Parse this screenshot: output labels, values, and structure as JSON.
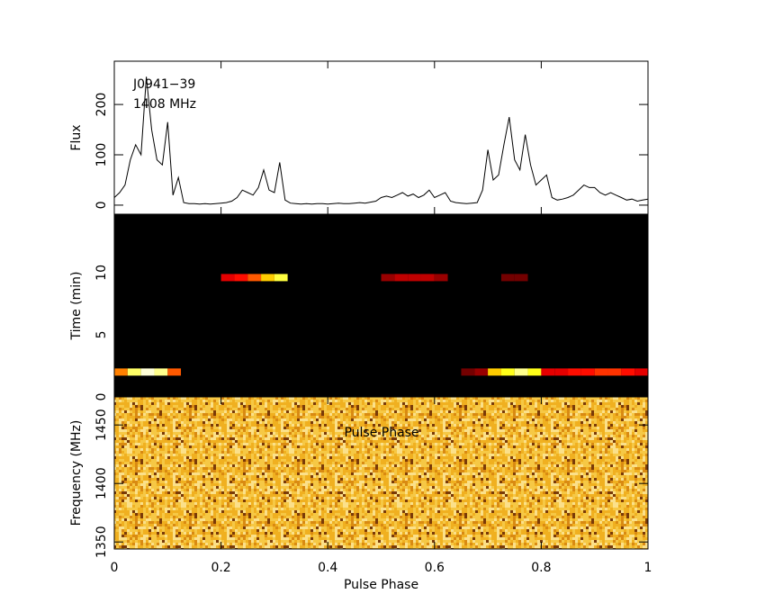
{
  "chart_data": [
    {
      "type": "line",
      "ylabel": "Flux",
      "annotations": [
        "J0941−39",
        "1408 MHz"
      ],
      "x": [
        0,
        0.01,
        0.02,
        0.03,
        0.04,
        0.05,
        0.06,
        0.07,
        0.08,
        0.09,
        0.1,
        0.11,
        0.12,
        0.13,
        0.14,
        0.15,
        0.16,
        0.17,
        0.18,
        0.19,
        0.2,
        0.21,
        0.22,
        0.23,
        0.24,
        0.25,
        0.26,
        0.27,
        0.28,
        0.29,
        0.3,
        0.31,
        0.32,
        0.33,
        0.34,
        0.35,
        0.36,
        0.37,
        0.38,
        0.39,
        0.4,
        0.41,
        0.42,
        0.43,
        0.44,
        0.45,
        0.46,
        0.47,
        0.48,
        0.49,
        0.5,
        0.51,
        0.52,
        0.53,
        0.54,
        0.55,
        0.56,
        0.57,
        0.58,
        0.59,
        0.6,
        0.61,
        0.62,
        0.63,
        0.64,
        0.65,
        0.66,
        0.67,
        0.68,
        0.69,
        0.7,
        0.71,
        0.72,
        0.73,
        0.74,
        0.75,
        0.76,
        0.77,
        0.78,
        0.79,
        0.8,
        0.81,
        0.82,
        0.83,
        0.84,
        0.85,
        0.86,
        0.87,
        0.88,
        0.89,
        0.9,
        0.91,
        0.92,
        0.93,
        0.94,
        0.95,
        0.96,
        0.97,
        0.98,
        0.99,
        1
      ],
      "values": [
        15,
        25,
        40,
        90,
        120,
        100,
        255,
        150,
        90,
        80,
        165,
        20,
        55,
        5,
        3,
        3,
        2,
        3,
        2,
        3,
        4,
        5,
        8,
        15,
        30,
        25,
        20,
        35,
        70,
        30,
        25,
        85,
        10,
        4,
        3,
        2,
        3,
        2,
        3,
        3,
        2,
        3,
        4,
        3,
        3,
        4,
        5,
        4,
        6,
        8,
        15,
        18,
        15,
        20,
        25,
        18,
        22,
        15,
        20,
        30,
        15,
        20,
        25,
        8,
        5,
        4,
        3,
        4,
        5,
        30,
        110,
        50,
        60,
        120,
        175,
        90,
        70,
        140,
        80,
        40,
        50,
        60,
        15,
        10,
        12,
        15,
        20,
        30,
        40,
        35,
        35,
        25,
        20,
        25,
        20,
        15,
        10,
        12,
        8,
        10,
        12
      ],
      "color": "#000000",
      "xlim": [
        0,
        1
      ],
      "xticks": [
        0,
        0.2,
        0.4,
        0.6,
        0.8,
        1
      ],
      "ylim": [
        -18,
        286
      ],
      "yticks": [
        0,
        100,
        200
      ]
    },
    {
      "type": "heatmap",
      "ylabel": "Time (min)",
      "x": [
        0,
        0.025,
        0.05,
        0.075,
        0.1,
        0.125,
        0.15,
        0.175,
        0.2,
        0.225,
        0.25,
        0.275,
        0.3,
        0.325,
        0.35,
        0.375,
        0.4,
        0.425,
        0.45,
        0.475,
        0.5,
        0.525,
        0.55,
        0.575,
        0.6,
        0.625,
        0.65,
        0.675,
        0.7,
        0.725,
        0.75,
        0.775,
        0.8,
        0.825,
        0.85,
        0.875,
        0.9,
        0.925,
        0.95,
        0.975,
        1
      ],
      "rows": [
        {
          "y": 2.0,
          "values": [
            0.5,
            0.8,
            0.95,
            0.85,
            0.45,
            0,
            0,
            0,
            0,
            0,
            0,
            0,
            0,
            0,
            0,
            0,
            0,
            0,
            0,
            0,
            0,
            0,
            0,
            0,
            0,
            0,
            0.15,
            0.2,
            0.6,
            0.7,
            0.85,
            0.7,
            0.3,
            0.3,
            0.35,
            0.35,
            0.4,
            0.4,
            0.35,
            0.3
          ]
        },
        {
          "y": 9.6,
          "values": [
            0,
            0,
            0,
            0,
            0,
            0,
            0,
            0,
            0.3,
            0.35,
            0.45,
            0.6,
            0.75,
            0,
            0,
            0,
            0,
            0,
            0,
            0,
            0.2,
            0.25,
            0.25,
            0.25,
            0.2,
            0,
            0,
            0,
            0,
            0.15,
            0.15,
            0,
            0,
            0,
            0,
            0,
            0,
            0,
            0,
            0
          ]
        }
      ],
      "xlim": [
        0,
        1
      ],
      "xticks": [
        0,
        0.2,
        0.4,
        0.6,
        0.8,
        1
      ],
      "ylim": [
        0,
        14.7
      ],
      "yticks": [
        0,
        5,
        10
      ]
    },
    {
      "type": "image",
      "ylabel": "Frequency (MHz)",
      "xlabel": "Pulse Phase",
      "annotations": [
        "Pulse Phase"
      ],
      "xlim": [
        0,
        1
      ],
      "xticks": [
        0,
        0.2,
        0.4,
        0.6,
        0.8,
        1
      ],
      "ylim": [
        1344,
        1474
      ],
      "yticks": [
        1350,
        1400,
        1450
      ]
    }
  ]
}
